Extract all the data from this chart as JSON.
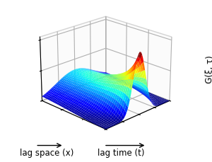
{
  "ylabel_z": "G(ξ, τ)",
  "xlabel_space": "lag space (x)",
  "xlabel_time": "lag time (t)",
  "xi_range": [
    -4.0,
    4.0
  ],
  "tau_range": [
    0.0,
    6.0
  ],
  "n_xi": 80,
  "n_tau": 80,
  "gaussian_sigma_xi": 0.75,
  "tau_decay": 0.7,
  "xi_peak": 0.0,
  "amplitude": 1.0,
  "elev": 22,
  "azim": -135,
  "figsize": [
    3.0,
    2.29
  ],
  "dpi": 100,
  "font_size": 8.5
}
